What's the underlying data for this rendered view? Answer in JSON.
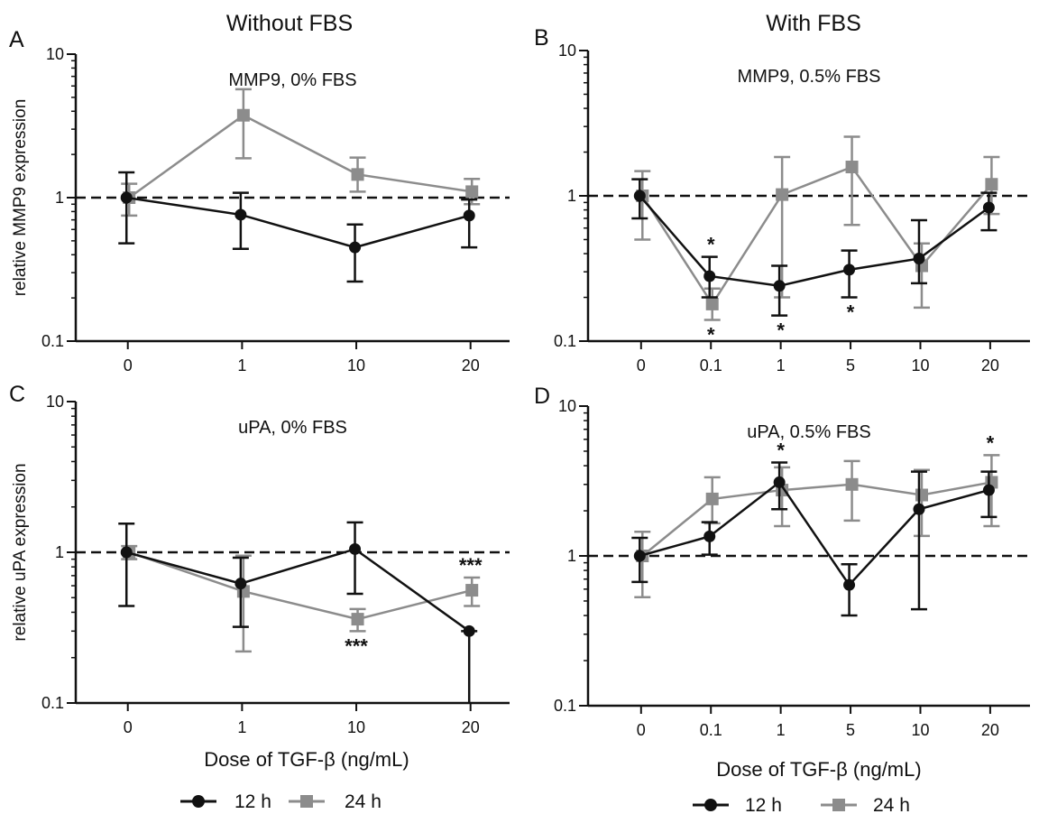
{
  "figure": {
    "col_titles": [
      "Without FBS",
      "With FBS"
    ],
    "xlabel": "Dose of TGF-β (ng/mL)"
  },
  "legend": {
    "items": [
      {
        "name": "12 h",
        "color": "#111111",
        "marker": "circle"
      },
      {
        "name": "24 h",
        "color": "#8c8c8c",
        "marker": "square"
      }
    ]
  },
  "chart_data": [
    {
      "id": "A",
      "panel_letter": "A",
      "type": "line",
      "title": "MMP9, 0% FBS",
      "ylabel": "relative MMP9 expression",
      "yscale": "log",
      "ylim": [
        0.1,
        10
      ],
      "yticks": [
        "0.1",
        "1",
        "10"
      ],
      "categories": [
        "0",
        "1",
        "10",
        "20"
      ],
      "reference_line": 1,
      "series": [
        {
          "name": "12 h",
          "values": [
            1.0,
            0.76,
            0.45,
            0.75
          ],
          "err_lo": [
            0.48,
            0.44,
            0.26,
            0.45
          ],
          "err_hi": [
            1.5,
            1.08,
            0.65,
            0.97
          ]
        },
        {
          "name": "24 h",
          "values": [
            1.0,
            3.75,
            1.45,
            1.1
          ],
          "err_lo": [
            0.75,
            1.88,
            1.1,
            0.9
          ],
          "err_hi": [
            1.25,
            5.7,
            1.9,
            1.35
          ]
        }
      ],
      "annotations": []
    },
    {
      "id": "B",
      "panel_letter": "B",
      "type": "line",
      "title": "MMP9, 0.5% FBS",
      "ylabel": "",
      "yscale": "log",
      "ylim": [
        0.1,
        10
      ],
      "yticks": [
        "0.1",
        "1",
        "10"
      ],
      "categories": [
        "0",
        "0.1",
        "1",
        "5",
        "10",
        "20"
      ],
      "reference_line": 1,
      "series": [
        {
          "name": "12 h",
          "values": [
            1.0,
            0.28,
            0.24,
            0.31,
            0.37,
            0.83
          ],
          "err_lo": [
            0.7,
            0.2,
            0.15,
            0.2,
            0.25,
            0.58
          ],
          "err_hi": [
            1.3,
            0.38,
            0.33,
            0.42,
            0.68,
            1.05
          ]
        },
        {
          "name": "24 h",
          "values": [
            1.0,
            0.18,
            1.02,
            1.58,
            0.33,
            1.2
          ],
          "err_lo": [
            0.5,
            0.14,
            0.2,
            0.63,
            0.17,
            0.75
          ],
          "err_hi": [
            1.48,
            0.23,
            1.85,
            2.55,
            0.47,
            1.85
          ]
        }
      ],
      "annotations": [
        {
          "category": "0.1",
          "position": "above",
          "anchor_value": 0.38,
          "text": "*"
        },
        {
          "category": "0.1",
          "position": "below",
          "anchor_value": 0.14,
          "text": "*"
        },
        {
          "category": "1",
          "position": "below",
          "anchor_value": 0.15,
          "text": "*"
        },
        {
          "category": "5",
          "position": "below",
          "anchor_value": 0.2,
          "text": "*"
        }
      ]
    },
    {
      "id": "C",
      "panel_letter": "C",
      "type": "line",
      "title": "uPA, 0% FBS",
      "ylabel": "relative uPA expression",
      "yscale": "log",
      "ylim": [
        0.1,
        10
      ],
      "yticks": [
        "0.1",
        "1",
        "10"
      ],
      "categories": [
        "0",
        "1",
        "10",
        "20"
      ],
      "reference_line": 1,
      "series": [
        {
          "name": "12 h",
          "values": [
            1.0,
            0.62,
            1.05,
            0.3
          ],
          "err_lo": [
            0.44,
            0.32,
            0.53,
            0.1
          ],
          "err_hi": [
            1.55,
            0.92,
            1.58,
            0.3
          ]
        },
        {
          "name": "24 h",
          "values": [
            1.0,
            0.55,
            0.36,
            0.56
          ],
          "err_lo": [
            0.9,
            0.22,
            0.3,
            0.44
          ],
          "err_hi": [
            1.1,
            0.95,
            0.42,
            0.68
          ]
        }
      ],
      "annotations": [
        {
          "category": "10",
          "position": "below",
          "anchor_value": 0.3,
          "text": "***"
        },
        {
          "category": "20",
          "position": "above",
          "anchor_value": 0.68,
          "text": "***"
        }
      ]
    },
    {
      "id": "D",
      "panel_letter": "D",
      "type": "line",
      "title": "uPA, 0.5% FBS",
      "ylabel": "",
      "yscale": "log",
      "ylim": [
        0.1,
        10
      ],
      "yticks": [
        "0.1",
        "1",
        "10"
      ],
      "categories": [
        "0",
        "0.1",
        "1",
        "5",
        "10",
        "20"
      ],
      "reference_line": 1,
      "series": [
        {
          "name": "12 h",
          "values": [
            1.0,
            1.35,
            3.1,
            0.64,
            2.05,
            2.75
          ],
          "err_lo": [
            0.67,
            1.02,
            2.05,
            0.4,
            0.44,
            1.82
          ],
          "err_hi": [
            1.32,
            1.68,
            4.2,
            0.88,
            3.65,
            3.65
          ]
        },
        {
          "name": "24 h",
          "values": [
            1.0,
            2.4,
            2.75,
            3.0,
            2.55,
            3.1
          ],
          "err_lo": [
            0.53,
            1.65,
            1.58,
            1.72,
            1.36,
            1.58
          ],
          "err_hi": [
            1.45,
            3.35,
            3.9,
            4.3,
            3.75,
            4.7
          ]
        }
      ],
      "annotations": [
        {
          "category": "1",
          "position": "above",
          "anchor_value": 4.2,
          "text": "*"
        },
        {
          "category": "20",
          "position": "above",
          "anchor_value": 4.7,
          "text": "*"
        }
      ]
    }
  ]
}
